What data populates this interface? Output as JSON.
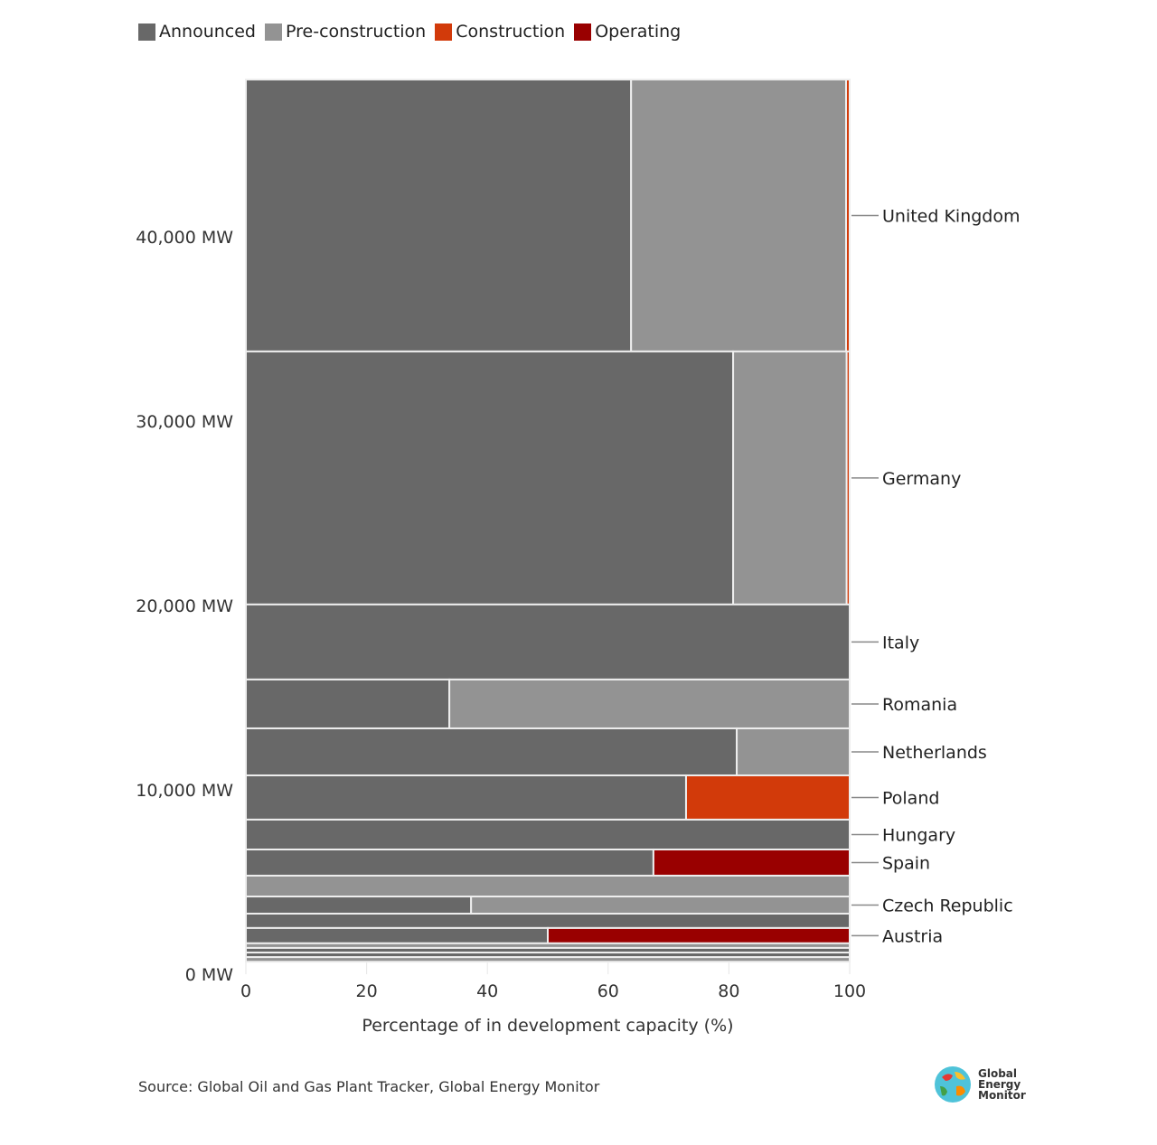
{
  "chart_data": {
    "type": "marimekko",
    "title": "",
    "xlabel": "Percentage of in development capacity (%)",
    "ylabel": "",
    "xlim": [
      0,
      100
    ],
    "ylim": [
      0,
      48530
    ],
    "xticks": [
      "0",
      "20",
      "40",
      "60",
      "80",
      "100"
    ],
    "yticks": [
      {
        "value": 0,
        "label": "0 MW"
      },
      {
        "value": 10000,
        "label": "10,000 MW"
      },
      {
        "value": 20000,
        "label": "20,000 MW"
      },
      {
        "value": 30000,
        "label": "30,000 MW"
      },
      {
        "value": 40000,
        "label": "40,000 MW"
      }
    ],
    "legend_position": "top-left",
    "series": [
      {
        "name": "Announced",
        "color": "#686868"
      },
      {
        "name": "Pre-construction",
        "color": "#939393"
      },
      {
        "name": "Construction",
        "color": "#d23a0a"
      },
      {
        "name": "Operating",
        "color": "#990000"
      }
    ],
    "rows": [
      {
        "country": "United Kingdom",
        "capacity_mw": 14750,
        "shares": [
          63.8,
          35.6,
          0.6,
          0
        ]
      },
      {
        "country": "Germany",
        "capacity_mw": 13725,
        "shares": [
          80.7,
          18.8,
          0.5,
          0
        ]
      },
      {
        "country": "Italy",
        "capacity_mw": 4070,
        "shares": [
          100,
          0,
          0,
          0
        ]
      },
      {
        "country": "Romania",
        "capacity_mw": 2650,
        "shares": [
          33.7,
          66.3,
          0,
          0
        ]
      },
      {
        "country": "Netherlands",
        "capacity_mw": 2550,
        "shares": [
          81.3,
          18.7,
          0,
          0
        ]
      },
      {
        "country": "Poland",
        "capacity_mw": 2400,
        "shares": [
          72.9,
          0,
          27.1,
          0
        ]
      },
      {
        "country": "Hungary",
        "capacity_mw": 1620,
        "shares": [
          100,
          0,
          0,
          0
        ]
      },
      {
        "country": "Spain",
        "capacity_mw": 1420,
        "shares": [
          67.5,
          0,
          0,
          32.5
        ]
      },
      {
        "country": "",
        "capacity_mw": 1130,
        "shares": [
          0,
          100,
          0,
          0
        ]
      },
      {
        "country": "Czech Republic",
        "capacity_mw": 930,
        "shares": [
          37.3,
          62.7,
          0,
          0
        ]
      },
      {
        "country": "",
        "capacity_mw": 780,
        "shares": [
          100,
          0,
          0,
          0
        ]
      },
      {
        "country": "Austria",
        "capacity_mw": 830,
        "shares": [
          50,
          0,
          0,
          50
        ]
      },
      {
        "country": "",
        "capacity_mw": 250,
        "shares": [
          0,
          100,
          0,
          0
        ]
      },
      {
        "country": "",
        "capacity_mw": 250,
        "shares": [
          100,
          0,
          0,
          0
        ]
      },
      {
        "country": "",
        "capacity_mw": 250,
        "shares": [
          100,
          0,
          0,
          0
        ]
      },
      {
        "country": "",
        "capacity_mw": 250,
        "shares": [
          0,
          100,
          0,
          0
        ]
      }
    ]
  },
  "source": "Source: Global Oil and Gas Plant Tracker, Global Energy Monitor",
  "logo": {
    "line1": "Global",
    "line2": "Energy",
    "line3": "Monitor"
  }
}
